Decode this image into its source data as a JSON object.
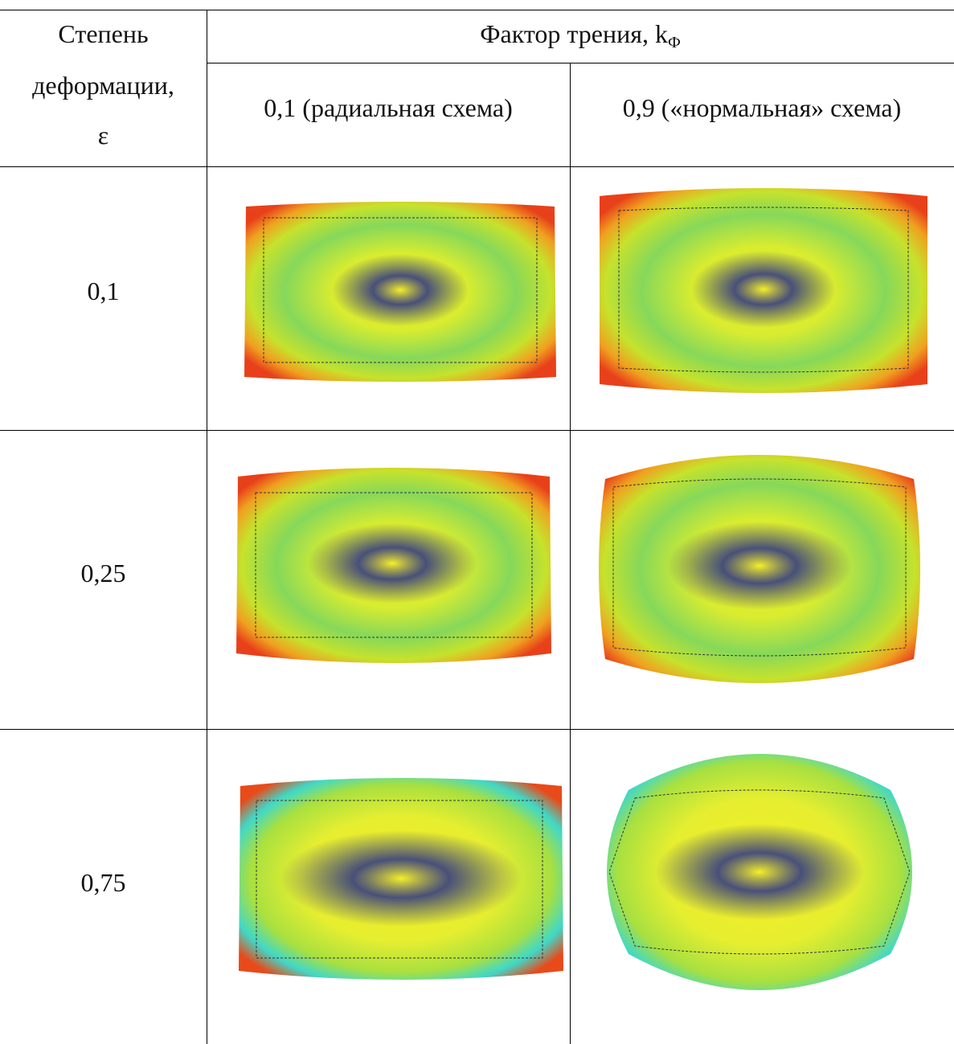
{
  "header": {
    "row_label": [
      "Степень",
      "деформации,",
      "ε"
    ],
    "column_group": {
      "text": "Фактор трения, k",
      "subscript": "Ф"
    },
    "columns": [
      "0,1 (радиальная схема)",
      "0,9 («нормальная» схема)"
    ]
  },
  "rows": [
    {
      "strain": "0,1"
    },
    {
      "strain": "0,25"
    },
    {
      "strain": "0,75"
    }
  ]
}
